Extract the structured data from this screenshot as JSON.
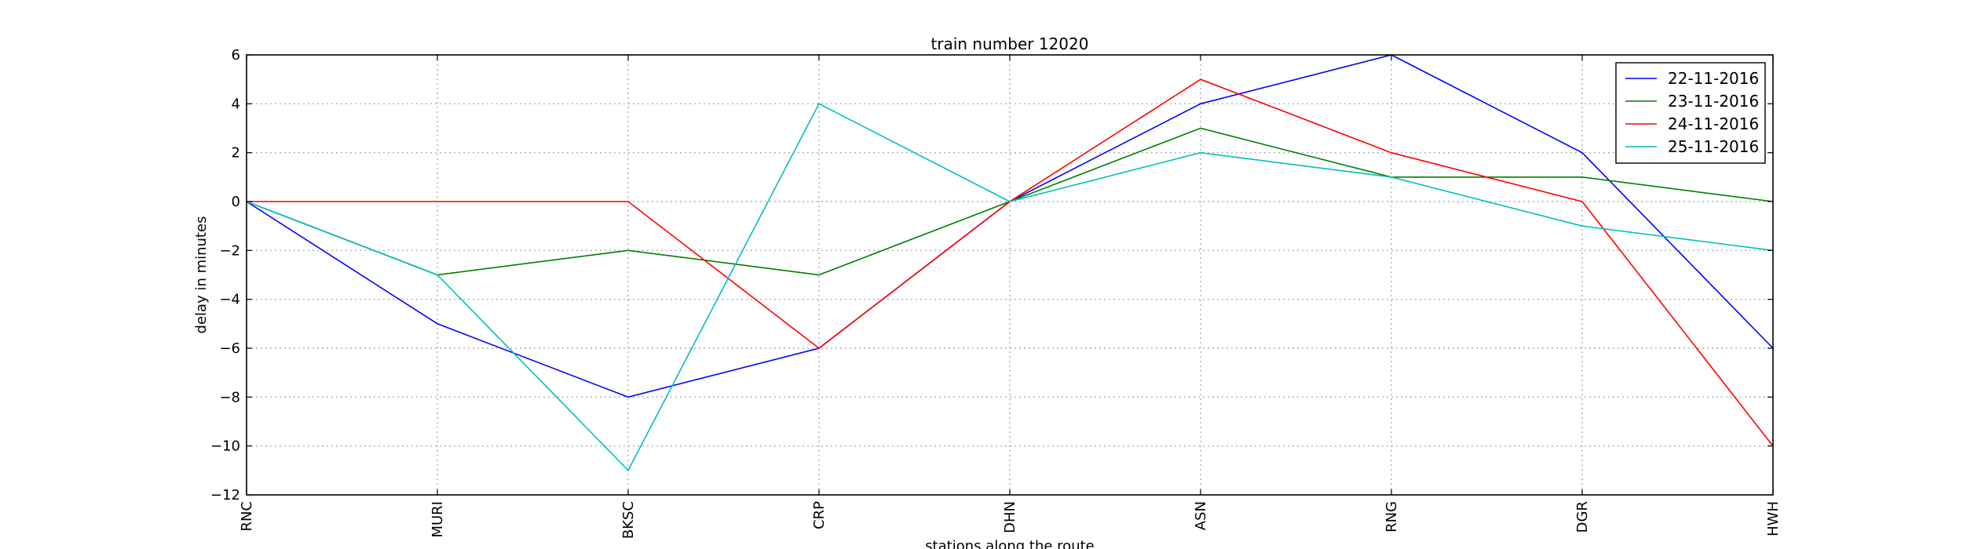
{
  "chart_data": {
    "type": "line",
    "title": "train number 12020",
    "xlabel": "stations along the route",
    "ylabel": "delay in minutes",
    "categories": [
      "RNC",
      "MURI",
      "BKSC",
      "CRP",
      "DHN",
      "ASN",
      "RNG",
      "DGR",
      "HWH"
    ],
    "ylim": [
      -12,
      6
    ],
    "yticks": [
      -12,
      -10,
      -8,
      -6,
      -4,
      -2,
      0,
      2,
      4,
      6
    ],
    "grid": true,
    "legend_position": "top-right",
    "series": [
      {
        "name": "22-11-2016",
        "color": "#0000ff",
        "values": [
          0,
          -5,
          -8,
          -6,
          0,
          4,
          6,
          2,
          -6
        ]
      },
      {
        "name": "23-11-2016",
        "color": "#008000",
        "values": [
          0,
          -3,
          -2,
          -3,
          0,
          3,
          1,
          1,
          0
        ]
      },
      {
        "name": "24-11-2016",
        "color": "#ff0000",
        "values": [
          0,
          0,
          0,
          -6,
          0,
          5,
          2,
          0,
          -10
        ]
      },
      {
        "name": "25-11-2016",
        "color": "#00bfbf",
        "values": [
          0,
          -3,
          -11,
          4,
          0,
          2,
          1,
          -1,
          -2
        ]
      }
    ]
  }
}
